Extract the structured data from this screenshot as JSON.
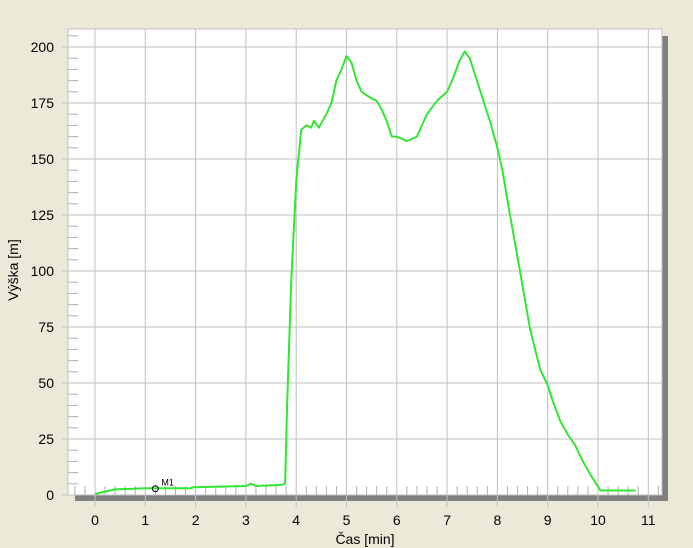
{
  "chart_data": {
    "type": "line",
    "title": "",
    "xlabel": "Čas [min]",
    "ylabel": "Výška [m]",
    "xlim": [
      -0.5,
      11.3
    ],
    "ylim": [
      0,
      210
    ],
    "grid": true,
    "xticks": [
      0,
      1,
      2,
      3,
      4,
      5,
      6,
      7,
      8,
      9,
      10,
      11
    ],
    "yticks": [
      0,
      25,
      50,
      75,
      100,
      125,
      150,
      175,
      200
    ],
    "colors": {
      "line": "#33e633",
      "background": "#ece9d8",
      "plot": "#ffffff",
      "grid": "#c0c0c0",
      "shadow": "#808080"
    },
    "series": [
      {
        "x": [
          0,
          0.2,
          0.4,
          1.0,
          1.9,
          1.95,
          3.0,
          3.1,
          3.2,
          3.7,
          3.78,
          3.82,
          3.9,
          4.0,
          4.1,
          4.2,
          4.3,
          4.35,
          4.45,
          4.6,
          4.7,
          4.8,
          4.9,
          5.0,
          5.1,
          5.2,
          5.3,
          5.5,
          5.6,
          5.7,
          5.8,
          5.9,
          6.0,
          6.2,
          6.4,
          6.5,
          6.6,
          6.8,
          7.0,
          7.1,
          7.25,
          7.35,
          7.45,
          7.55,
          7.65,
          7.75,
          7.85,
          8.0,
          8.1,
          8.25,
          8.45,
          8.65,
          8.85,
          9.0,
          9.1,
          9.25,
          9.4,
          9.55,
          9.7,
          9.85,
          10.05,
          10.75
        ],
        "y": [
          0.5,
          1.5,
          2.5,
          3,
          3,
          3.5,
          4,
          5,
          4,
          4.5,
          5,
          40,
          95,
          140,
          163,
          165,
          164,
          167,
          164,
          170,
          175,
          185,
          190,
          196,
          193,
          185,
          180,
          177,
          176,
          172,
          167,
          160,
          160,
          158,
          160,
          165,
          170,
          176,
          180,
          185,
          194,
          198,
          195,
          188,
          181,
          174,
          167,
          155,
          145,
          125,
          100,
          74,
          56,
          49,
          42,
          33,
          27,
          22,
          15,
          9,
          2,
          2
        ]
      }
    ],
    "annotations": [
      {
        "label": "M1",
        "x": 1.2,
        "y": 2.8
      }
    ]
  }
}
